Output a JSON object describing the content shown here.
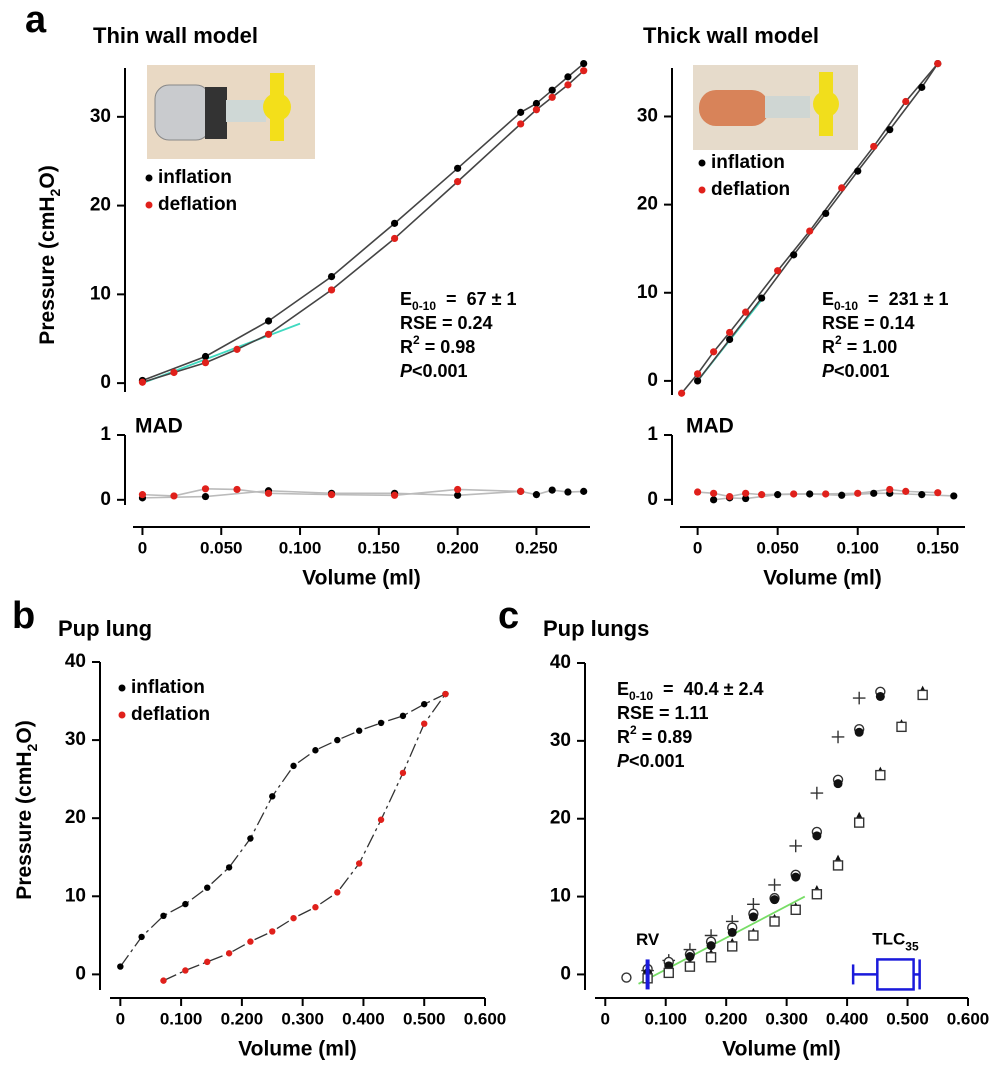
{
  "panel_labels": [
    "a",
    "b",
    "c"
  ],
  "chart_data": [
    {
      "type": "line",
      "title": "Thin wall model",
      "ylabel": {
        "text": "Pressure (cmH",
        "sub": "2",
        "tail": "O)"
      },
      "xlim": [
        -0.006,
        0.284
      ],
      "ylim": [
        -1,
        35.5
      ],
      "yticks": [
        0,
        10,
        20,
        30
      ],
      "series": [
        {
          "name": "inflation",
          "color": "#000000",
          "line_color": "#444444",
          "line_style": "solid",
          "x": [
            0,
            0.04,
            0.08,
            0.12,
            0.16,
            0.2,
            0.24,
            0.25,
            0.26,
            0.27,
            0.28
          ],
          "values": [
            0.3,
            3.0,
            7.0,
            12.0,
            18.0,
            24.2,
            30.5,
            31.5,
            33.0,
            34.5,
            36.0
          ]
        },
        {
          "name": "deflation",
          "color": "#e0201b",
          "line_color": "#444444",
          "line_style": "solid",
          "x": [
            0,
            0.02,
            0.04,
            0.06,
            0.08,
            0.12,
            0.16,
            0.2,
            0.24,
            0.25,
            0.26,
            0.27,
            0.28
          ],
          "values": [
            0.1,
            1.2,
            2.3,
            3.8,
            5.5,
            10.5,
            16.3,
            22.7,
            29.2,
            30.8,
            32.2,
            33.6,
            35.2
          ]
        }
      ],
      "fit_line": {
        "color": "#3fd9c0",
        "x": [
          0,
          0.1
        ],
        "y": [
          0,
          6.7
        ]
      },
      "stats": [
        [
          {
            "text": "E"
          },
          {
            "text": "0-10",
            "sub": true
          },
          {
            "text": "  =  67 ± 1"
          }
        ],
        [
          {
            "text": "RSE = 0.24"
          }
        ],
        [
          {
            "text": "R"
          },
          {
            "text": "2",
            "sup": true
          },
          {
            "text": " = 0.98"
          }
        ],
        [
          {
            "text": "P",
            "italic": true
          },
          {
            "text": "<0.001"
          }
        ]
      ]
    },
    {
      "type": "line",
      "title": "MAD",
      "xlabel": "Volume (ml)",
      "xlim": [
        -0.006,
        0.284
      ],
      "ylim": [
        -0.08,
        1
      ],
      "yticks": [
        0,
        1
      ],
      "xticks": [
        0,
        {
          "value": 0.05,
          "label": "0.050"
        },
        {
          "value": 0.1,
          "label": "0.100"
        },
        {
          "value": 0.15,
          "label": "0.150"
        },
        {
          "value": 0.2,
          "label": "0.200"
        },
        {
          "value": 0.25,
          "label": "0.250"
        }
      ],
      "series": [
        {
          "color": "#000000",
          "line_color": "#bbbbbb",
          "line_style": "solid",
          "x": [
            0,
            0.04,
            0.08,
            0.12,
            0.16,
            0.2,
            0.24,
            0.25,
            0.26,
            0.27,
            0.28
          ],
          "values": [
            0.03,
            0.05,
            0.14,
            0.1,
            0.1,
            0.07,
            0.13,
            0.08,
            0.15,
            0.12,
            0.13
          ]
        },
        {
          "color": "#e0201b",
          "line_color": "#bbbbbb",
          "line_style": "solid",
          "x": [
            0,
            0.02,
            0.04,
            0.06,
            0.08,
            0.12,
            0.16,
            0.2,
            0.24
          ],
          "values": [
            0.08,
            0.06,
            0.17,
            0.16,
            0.1,
            0.08,
            0.07,
            0.16,
            0.13
          ]
        }
      ]
    },
    {
      "type": "line",
      "title": "Thick wall model",
      "xlim": [
        -0.011,
        0.167
      ],
      "ylim": [
        -1.6,
        35.5
      ],
      "yticks": [
        0,
        10,
        20,
        30
      ],
      "series": [
        {
          "name": "inflation",
          "color": "#000000",
          "line_color": "#444444",
          "line_style": "solid",
          "x": [
            0,
            0.02,
            0.04,
            0.06,
            0.08,
            0.1,
            0.12,
            0.14,
            0.15
          ],
          "values": [
            0,
            4.7,
            9.4,
            14.3,
            19.0,
            23.8,
            28.5,
            33.3,
            36.0
          ]
        },
        {
          "name": "deflation",
          "color": "#e0201b",
          "line_color": "#444444",
          "line_style": "solid",
          "x": [
            -0.01,
            0,
            0.01,
            0.02,
            0.03,
            0.05,
            0.07,
            0.09,
            0.11,
            0.13,
            0.15
          ],
          "values": [
            -1.4,
            0.8,
            3.3,
            5.5,
            7.8,
            12.5,
            17.0,
            21.9,
            26.6,
            31.7,
            36.0
          ]
        }
      ],
      "fit_line": {
        "color": "#3fd9c0",
        "x": [
          0,
          0.04
        ],
        "y": [
          0,
          9.2
        ]
      },
      "stats": [
        [
          {
            "text": "E"
          },
          {
            "text": "0-10",
            "sub": true
          },
          {
            "text": "  =  231 ± 1"
          }
        ],
        [
          {
            "text": "RSE = 0.14"
          }
        ],
        [
          {
            "text": "R"
          },
          {
            "text": "2",
            "sup": true
          },
          {
            "text": " = 1.00"
          }
        ],
        [
          {
            "text": "P",
            "italic": true
          },
          {
            "text": "<0.001"
          }
        ]
      ]
    },
    {
      "type": "line",
      "title": "MAD",
      "xlabel": "Volume (ml)",
      "xlim": [
        -0.011,
        0.167
      ],
      "ylim": [
        -0.08,
        1
      ],
      "yticks": [
        0,
        1
      ],
      "xticks": [
        0,
        {
          "value": 0.05,
          "label": "0.050"
        },
        {
          "value": 0.1,
          "label": "0.100"
        },
        {
          "value": 0.15,
          "label": "0.150"
        }
      ],
      "series": [
        {
          "color": "#000000",
          "line_color": "#bbbbbb",
          "line_style": "solid",
          "x": [
            0.01,
            0.02,
            0.03,
            0.05,
            0.07,
            0.09,
            0.11,
            0.12,
            0.14,
            0.16
          ],
          "values": [
            0.0,
            0.03,
            0.02,
            0.08,
            0.09,
            0.07,
            0.1,
            0.1,
            0.08,
            0.06
          ]
        },
        {
          "color": "#e0201b",
          "line_color": "#bbbbbb",
          "line_style": "solid",
          "x": [
            0,
            0.01,
            0.02,
            0.03,
            0.04,
            0.06,
            0.08,
            0.1,
            0.12,
            0.13,
            0.15
          ],
          "values": [
            0.12,
            0.1,
            0.05,
            0.1,
            0.08,
            0.09,
            0.09,
            0.1,
            0.16,
            0.13,
            0.11
          ]
        }
      ]
    },
    {
      "type": "line",
      "title": "Pup lung",
      "xlabel": "Volume (ml)",
      "ylabel": {
        "text": "Pressure (cmH",
        "sub": "2",
        "tail": "O)"
      },
      "xlim": [
        -0.017,
        0.6
      ],
      "ylim": [
        -2,
        40
      ],
      "yticks": [
        0,
        10,
        20,
        30,
        40
      ],
      "xticks": [
        0,
        {
          "value": 0.1,
          "label": "0.100"
        },
        {
          "value": 0.2,
          "label": "0.200"
        },
        {
          "value": 0.3,
          "label": "0.300"
        },
        {
          "value": 0.4,
          "label": "0.400"
        },
        {
          "value": 0.5,
          "label": "0.500"
        },
        {
          "value": 0.6,
          "label": "0.600"
        }
      ],
      "series": [
        {
          "name": "inflation",
          "color": "#000000",
          "line_color": "#333333",
          "line_style": "dashed",
          "x": [
            0,
            0.035,
            0.071,
            0.107,
            0.143,
            0.179,
            0.214,
            0.25,
            0.285,
            0.321,
            0.357,
            0.393,
            0.429,
            0.465,
            0.5,
            0.535
          ],
          "values": [
            1,
            4.8,
            7.5,
            9,
            11.1,
            13.7,
            17.4,
            22.8,
            26.7,
            28.7,
            30,
            31.2,
            32.2,
            33.1,
            34.6,
            35.9
          ]
        },
        {
          "name": "deflation",
          "color": "#e0201b",
          "line_color": "#333333",
          "line_style": "dashed",
          "x": [
            0.071,
            0.107,
            0.143,
            0.179,
            0.214,
            0.25,
            0.285,
            0.321,
            0.357,
            0.393,
            0.429,
            0.465,
            0.5,
            0.535
          ],
          "values": [
            -0.8,
            0.5,
            1.6,
            2.7,
            4.2,
            5.5,
            7.2,
            8.6,
            10.5,
            14.2,
            19.8,
            25.8,
            32.1,
            35.9
          ]
        }
      ]
    },
    {
      "type": "scatter",
      "title": "Pup lungs",
      "xlabel": "Volume (ml)",
      "xlim": [
        -0.017,
        0.6
      ],
      "ylim": [
        -2,
        40
      ],
      "yticks": [
        0,
        10,
        20,
        30,
        40
      ],
      "xticks": [
        0,
        {
          "value": 0.1,
          "label": "0.100"
        },
        {
          "value": 0.2,
          "label": "0.200"
        },
        {
          "value": 0.3,
          "label": "0.300"
        },
        {
          "value": 0.4,
          "label": "0.400"
        },
        {
          "value": 0.5,
          "label": "0.500"
        },
        {
          "value": 0.6,
          "label": "0.600"
        }
      ],
      "series": [
        {
          "marker": "plus",
          "color": "#333333",
          "x": [
            0.07,
            0.105,
            0.14,
            0.175,
            0.21,
            0.245,
            0.28,
            0.315,
            0.35,
            0.385,
            0.42
          ],
          "values": [
            0.5,
            1.8,
            3.2,
            5,
            6.8,
            9,
            11.5,
            16.5,
            23.3,
            30.5,
            35.5
          ]
        },
        {
          "marker": "open-circle",
          "color": "#333333",
          "x": [
            0.035,
            0.07,
            0.105,
            0.14,
            0.175,
            0.21,
            0.245,
            0.28,
            0.315,
            0.35,
            0.385,
            0.42,
            0.455
          ],
          "values": [
            -0.4,
            0.7,
            1.6,
            2.6,
            4.2,
            6,
            7.8,
            9.8,
            12.8,
            18.3,
            25,
            31.5,
            36.3
          ]
        },
        {
          "marker": "filled-circle",
          "color": "#111111",
          "x": [
            0.07,
            0.105,
            0.14,
            0.175,
            0.21,
            0.245,
            0.28,
            0.315,
            0.35,
            0.385,
            0.42,
            0.455
          ],
          "values": [
            0.2,
            1.1,
            2.3,
            3.7,
            5.4,
            7.4,
            9.6,
            12.5,
            17.8,
            24.5,
            31.1,
            35.7
          ]
        },
        {
          "marker": "triangle",
          "color": "#111111",
          "x": [
            0.07,
            0.105,
            0.14,
            0.175,
            0.21,
            0.245,
            0.28,
            0.315,
            0.35,
            0.385,
            0.42,
            0.455,
            0.49,
            0.525
          ],
          "values": [
            0,
            0.5,
            1.4,
            2.6,
            4,
            5.3,
            7.1,
            8.6,
            10.8,
            14.7,
            20.2,
            26,
            32.1,
            36.4
          ]
        },
        {
          "marker": "open-square",
          "color": "#333333",
          "x": [
            0.07,
            0.105,
            0.14,
            0.175,
            0.21,
            0.245,
            0.28,
            0.315,
            0.35,
            0.385,
            0.42,
            0.455,
            0.49,
            0.525
          ],
          "values": [
            -0.5,
            0.2,
            1,
            2.2,
            3.6,
            5,
            6.8,
            8.3,
            10.3,
            14,
            19.5,
            25.6,
            31.8,
            35.9
          ]
        }
      ],
      "fit_line": {
        "color": "#77dd66",
        "x": [
          0.055,
          0.33
        ],
        "y": [
          -1.2,
          10
        ]
      },
      "rv": {
        "label": "RV",
        "x": 0.07,
        "color": "#1a1adb"
      },
      "tlc": {
        "label": "TLC",
        "sub": "35",
        "min": 0.41,
        "q1": 0.45,
        "q3": 0.51,
        "max": 0.52,
        "color": "#1a1adb"
      },
      "stats": [
        [
          {
            "text": "E"
          },
          {
            "text": "0-10",
            "sub": true
          },
          {
            "text": "  =  40.4 ± 2.4"
          }
        ],
        [
          {
            "text": "RSE = 1.11"
          }
        ],
        [
          {
            "text": "R"
          },
          {
            "text": "2",
            "sup": true
          },
          {
            "text": " = 0.89"
          }
        ],
        [
          {
            "text": "P",
            "italic": true
          },
          {
            "text": "<0.001"
          }
        ]
      ]
    }
  ]
}
